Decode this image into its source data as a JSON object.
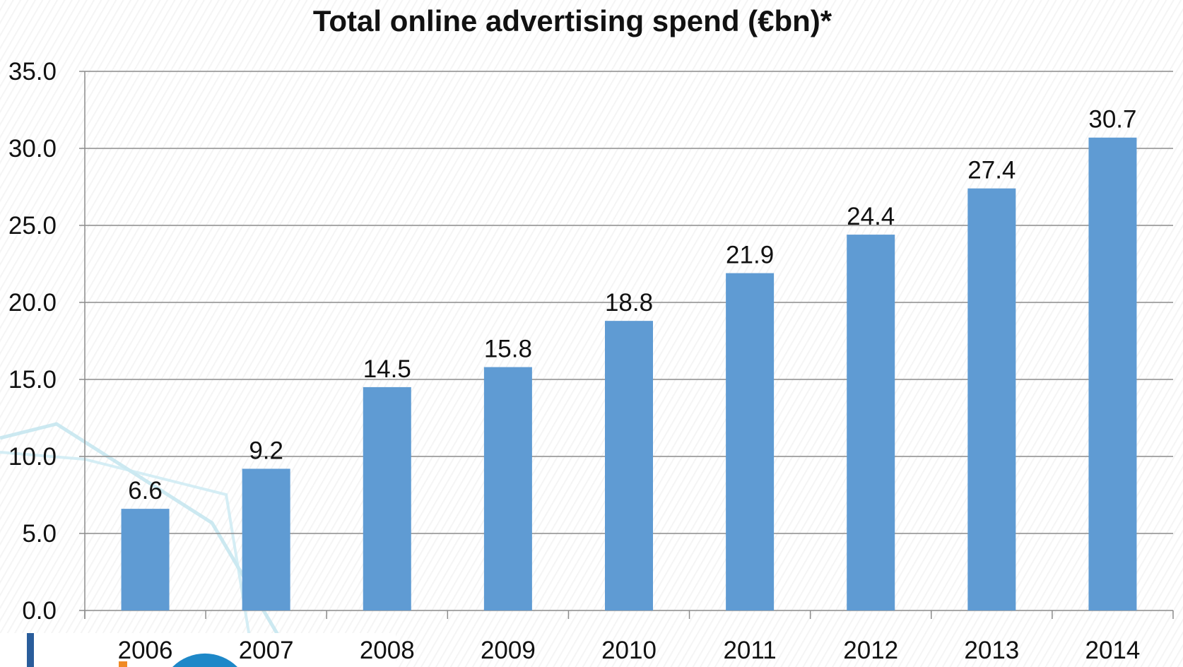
{
  "chart_data": {
    "type": "bar",
    "title": "Total online advertising spend (€bn)*",
    "xlabel": "",
    "ylabel": "",
    "categories": [
      "2006",
      "2007",
      "2008",
      "2009",
      "2010",
      "2011",
      "2012",
      "2013",
      "2014"
    ],
    "values": [
      6.6,
      9.2,
      14.5,
      15.8,
      18.8,
      21.9,
      24.4,
      27.4,
      30.7
    ],
    "data_labels": [
      "6.6",
      "9.2",
      "14.5",
      "15.8",
      "18.8",
      "21.9",
      "24.4",
      "27.4",
      "30.7"
    ],
    "ylim": [
      0,
      35
    ],
    "yticks": [
      "0.0",
      "5.0",
      "10.0",
      "15.0",
      "20.0",
      "25.0",
      "30.0",
      "35.0"
    ],
    "grid": true,
    "bar_color": "#5f9bd3"
  }
}
